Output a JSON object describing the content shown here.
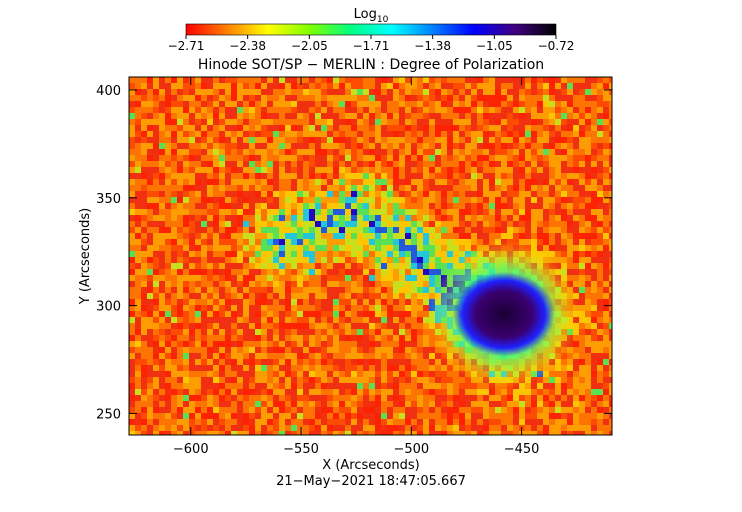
{
  "chart_data": {
    "type": "heatmap",
    "title": "Hinode SOT/SP − MERLIN : Degree of Polarization",
    "xlabel": "X (Arcseconds)",
    "ylabel": "Y (Arcseconds)",
    "timestamp": "21−May−2021 18:47:05.667",
    "colorbar": {
      "label_base": "Log",
      "label_sub": "10",
      "min": -2.71,
      "max": -0.72,
      "ticks": [
        "−2.71",
        "−2.38",
        "−2.05",
        "−1.71",
        "−1.38",
        "−1.05",
        "−0.72"
      ],
      "colors": [
        "#ff0000",
        "#ff8000",
        "#ffff00",
        "#80ff00",
        "#00ff80",
        "#00ffff",
        "#0080ff",
        "#0000ff",
        "#400080",
        "#000000"
      ]
    },
    "xlim": [
      -628,
      -409
    ],
    "ylim": [
      240,
      406
    ],
    "xticks": [
      -600,
      -550,
      -500,
      -450
    ],
    "xtick_labels": [
      "−600",
      "−550",
      "−500",
      "−450"
    ],
    "yticks": [
      250,
      300,
      350,
      400
    ],
    "ytick_labels": [
      "250",
      "300",
      "350",
      "400"
    ],
    "features": {
      "sunspot": {
        "x": -458,
        "y": 296,
        "core_radius_arcsec": 16
      },
      "plage_band": [
        [
          -560,
          330
        ],
        [
          -525,
          345
        ],
        [
          -495,
          320
        ],
        [
          -470,
          300
        ]
      ]
    }
  }
}
